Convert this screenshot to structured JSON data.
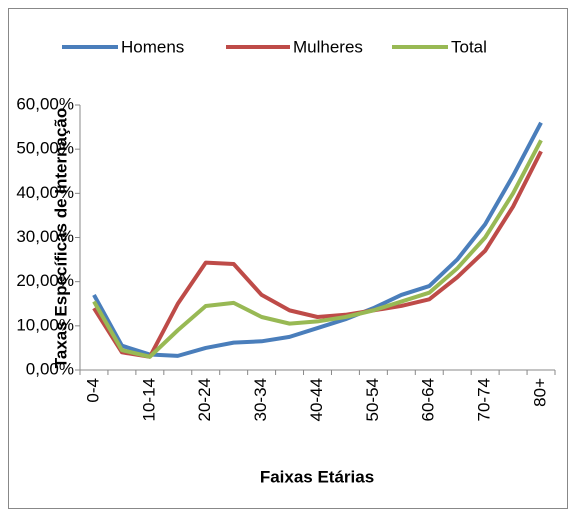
{
  "chart_data": {
    "type": "line",
    "y_axis_label": "Taxas Específicas de Internação",
    "x_axis_label": "Faixas Etárias",
    "categories": [
      "0-4",
      null,
      "10-14",
      null,
      "20-24",
      null,
      "30-34",
      null,
      "40-44",
      null,
      "50-54",
      null,
      "60-64",
      null,
      "70-74",
      null,
      "80+"
    ],
    "series": [
      {
        "name": "Homens",
        "color": "#4a7ebb",
        "values": [
          17,
          5.5,
          3.5,
          3.2,
          5,
          6.2,
          6.5,
          7.5,
          9.5,
          11.5,
          14,
          17,
          19,
          25,
          33,
          44,
          56
        ]
      },
      {
        "name": "Mulheres",
        "color": "#be4b48",
        "values": [
          14,
          4,
          3,
          15,
          24.3,
          24,
          17,
          13.5,
          12,
          12.5,
          13.5,
          14.5,
          16,
          21,
          27,
          37,
          49.5
        ]
      },
      {
        "name": "Total",
        "color": "#98b954",
        "values": [
          15.5,
          4.5,
          3,
          9,
          14.5,
          15.2,
          12,
          10.5,
          11,
          12,
          13.5,
          15.5,
          17.5,
          23,
          30,
          40,
          52
        ]
      }
    ],
    "ylim": [
      0,
      60
    ],
    "yticks": [
      {
        "value": 0,
        "label": "0,00%"
      },
      {
        "value": 10,
        "label": "10,00%"
      },
      {
        "value": 20,
        "label": "20,00%"
      },
      {
        "value": 30,
        "label": "30,00%"
      },
      {
        "value": 40,
        "label": "40,00%"
      },
      {
        "value": 50,
        "label": "50,00%"
      },
      {
        "value": 60,
        "label": "60,00%"
      }
    ],
    "legend": "top"
  }
}
